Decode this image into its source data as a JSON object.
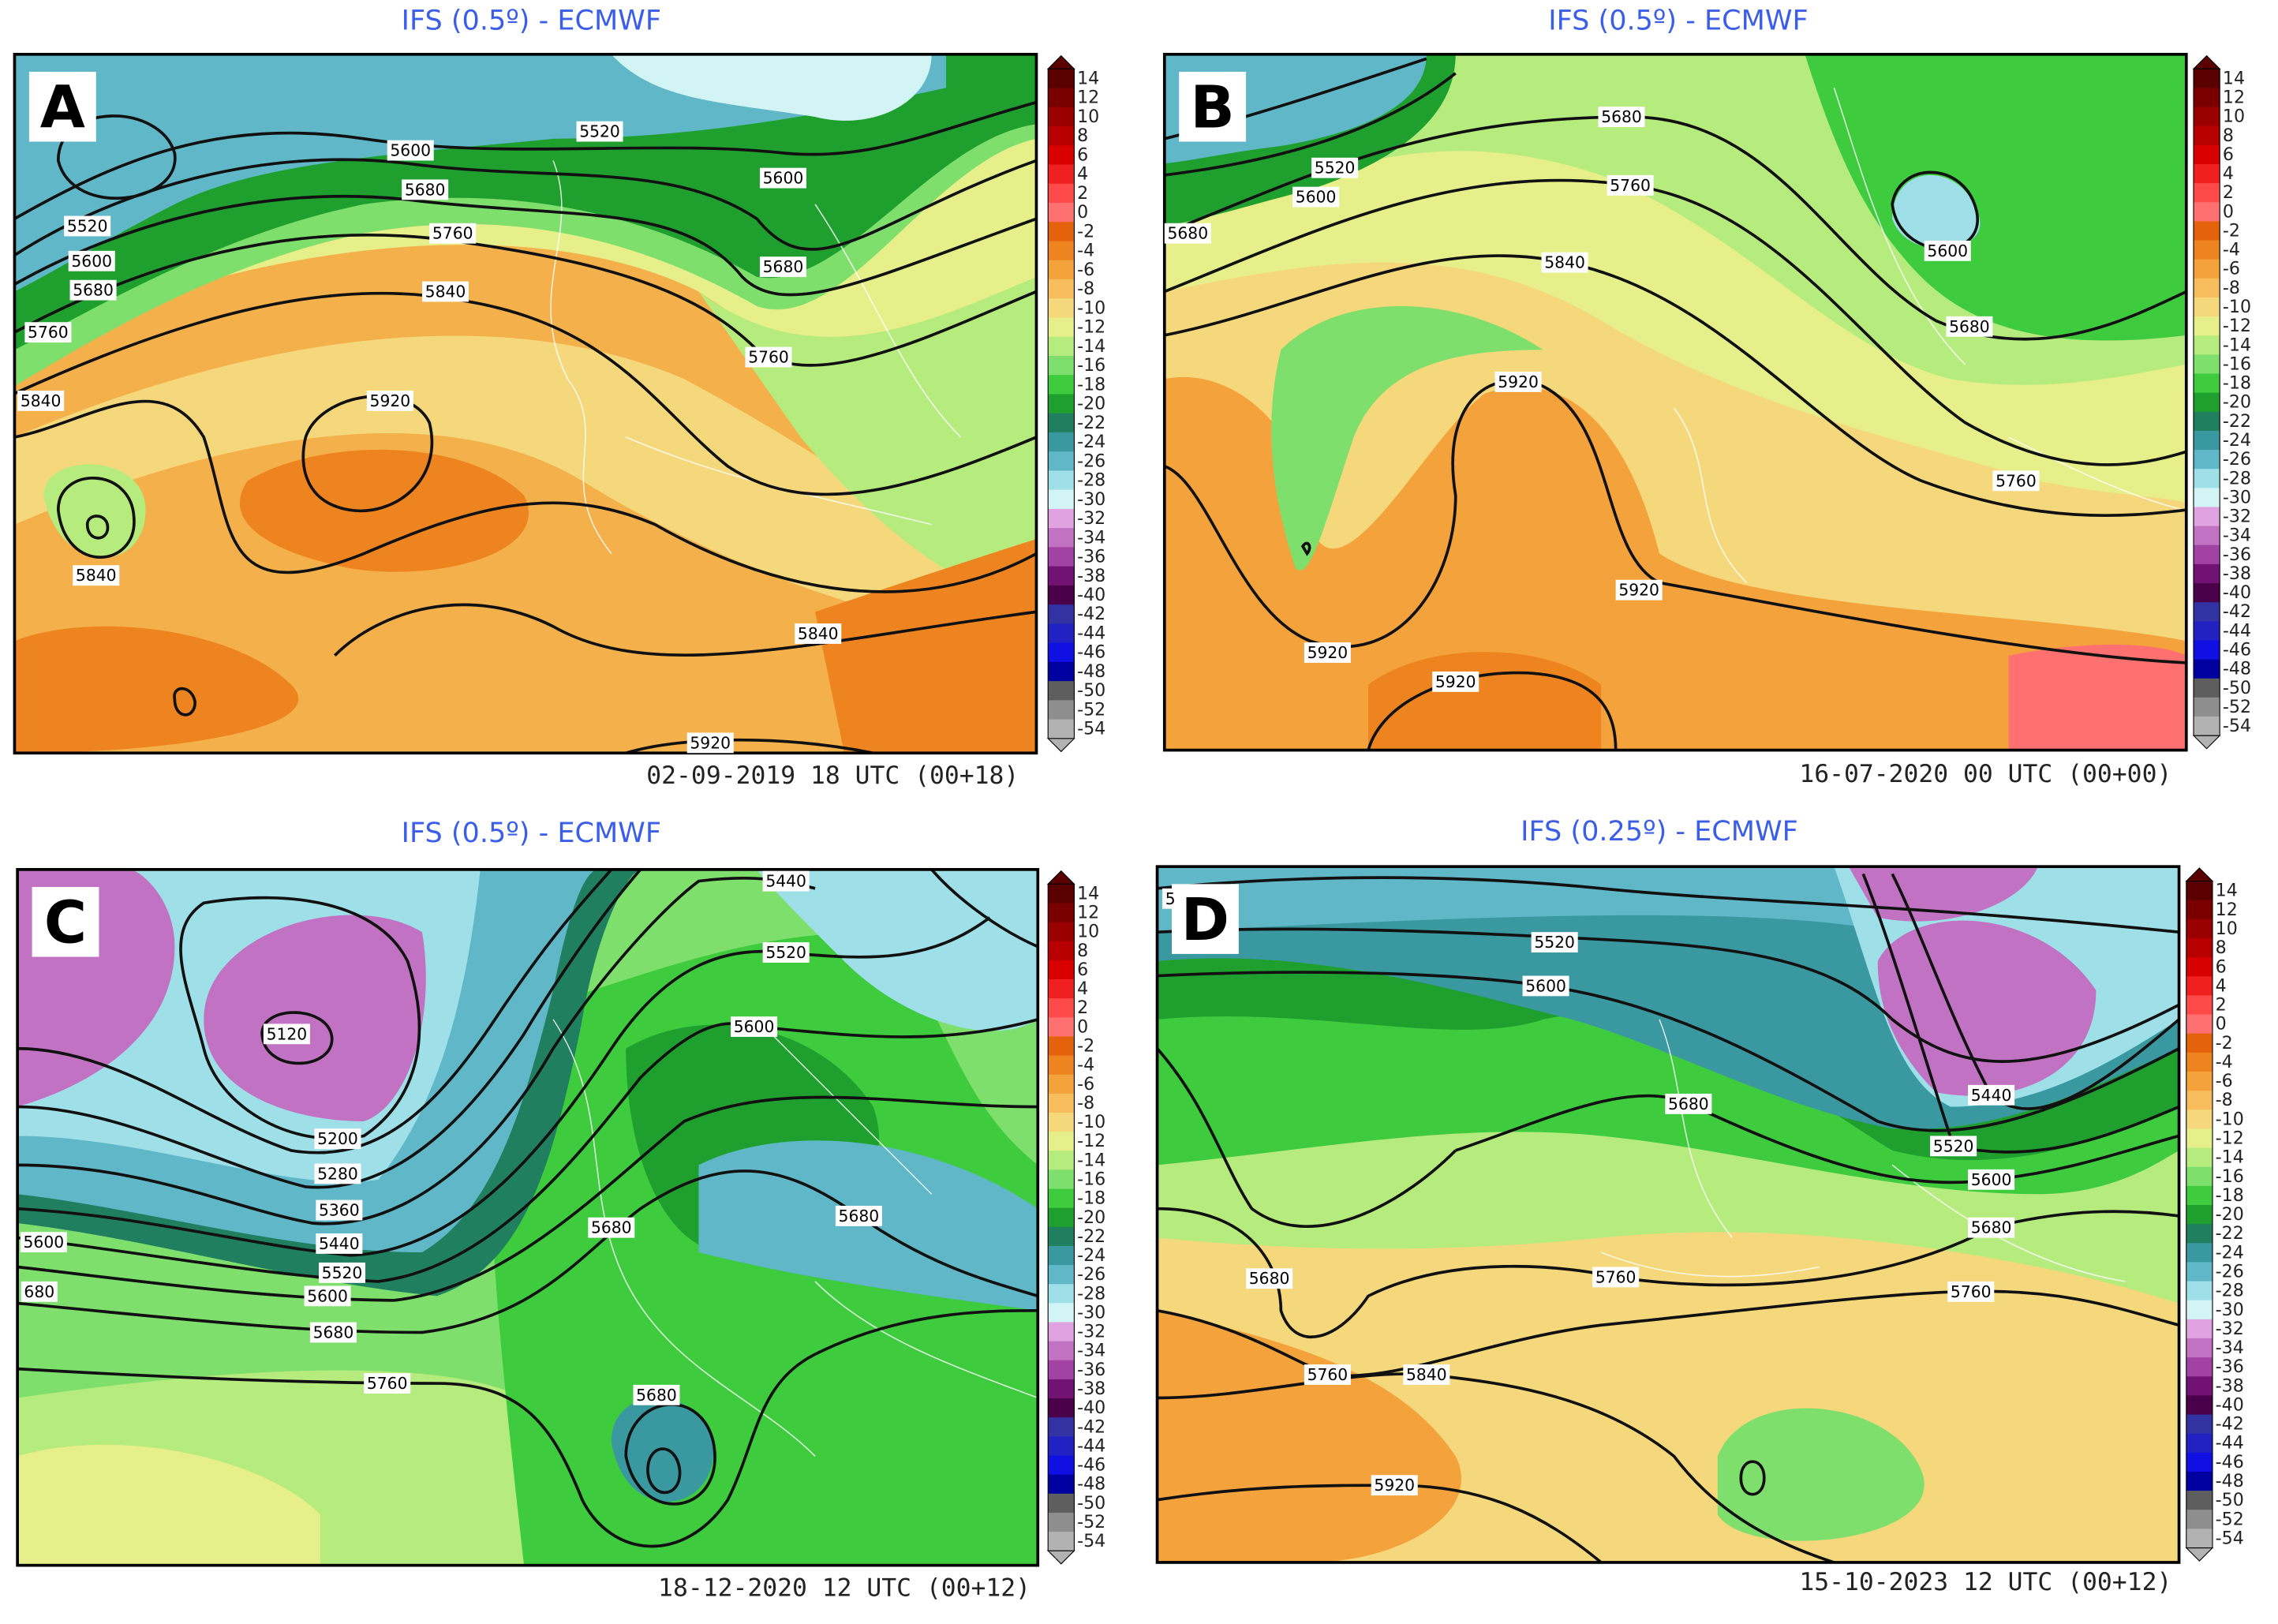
{
  "panels": [
    {
      "letter": "A",
      "title": "IFS (0.5º) - ECMWF",
      "timestamp": "02-09-2019 18 UTC (00+18)",
      "contour_labels": [
        5520,
        5600,
        5600,
        5680,
        5760,
        5840,
        5520,
        5600,
        5680,
        5760,
        5840,
        5920,
        5840,
        5680,
        5760,
        5840,
        5920
      ]
    },
    {
      "letter": "B",
      "title": "IFS (0.5º) - ECMWF",
      "timestamp": "16-07-2020 00 UTC (00+00)",
      "contour_labels": [
        5680,
        5520,
        5600,
        5680,
        5760,
        5840,
        5600,
        5680,
        5920,
        5760,
        5920,
        5920,
        5920
      ]
    },
    {
      "letter": "C",
      "title": "IFS (0.5º) - ECMWF",
      "timestamp": "18-12-2020 12 UTC (00+12)",
      "contour_labels": [
        5440,
        5520,
        5600,
        5120,
        5200,
        5280,
        5360,
        5440,
        5520,
        5600,
        5680,
        5600,
        680,
        5760,
        5680,
        5680,
        5680
      ]
    },
    {
      "letter": "D",
      "title": "IFS (0.25º) - ECMWF",
      "timestamp": "15-10-2023 12 UTC (00+12)",
      "contour_labels": [
        5,
        5520,
        5600,
        5440,
        5680,
        5520,
        5600,
        5680,
        5680,
        5760,
        5760,
        5760,
        5840,
        5920
      ]
    }
  ],
  "colorbar": {
    "labels": [
      14,
      12,
      10,
      8,
      6,
      4,
      2,
      0,
      -2,
      -4,
      -6,
      -8,
      -10,
      -12,
      -14,
      -16,
      -18,
      -20,
      -22,
      -24,
      -26,
      -28,
      -30,
      -32,
      -34,
      -36,
      -38,
      -40,
      -42,
      -44,
      -46,
      -48,
      -50,
      -52,
      -54
    ],
    "colors": [
      "#5a0000",
      "#7a0000",
      "#9a0000",
      "#b80000",
      "#d80000",
      "#f02020",
      "#ff4a4a",
      "#ff7070",
      "#e5620c",
      "#ee8420",
      "#f4a23c",
      "#f7bd5c",
      "#f6d87c",
      "#e6ef8a",
      "#b6eb7e",
      "#7fdf6c",
      "#3ecb3e",
      "#1f9f2e",
      "#1f7f5e",
      "#3a98a0",
      "#5fb7c8",
      "#9fdfe8",
      "#d2f4f4",
      "#e0a2e0",
      "#c272c2",
      "#a242a2",
      "#721272",
      "#4a004a",
      "#3232a2",
      "#2222c2",
      "#1010e2",
      "#0000a0",
      "#5e5e5e",
      "#8e8e8e",
      "#b2b2b2"
    ]
  }
}
